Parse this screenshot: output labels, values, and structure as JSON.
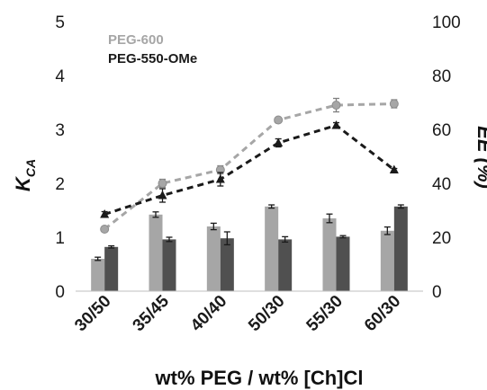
{
  "chart_data": {
    "type": "bar",
    "categories": [
      "30/50",
      "35/45",
      "40/40",
      "50/30",
      "55/30",
      "60/30"
    ],
    "xlabel": "wt% PEG / wt% [Ch]Cl",
    "ylabel_left": {
      "main": "K",
      "sub": "CA"
    },
    "ylabel_right": "EE (%)",
    "ylim_left": [
      0,
      5
    ],
    "yticks_left": [
      "0",
      "1",
      "2",
      "3",
      "4",
      "5"
    ],
    "ylim_right": [
      0,
      100
    ],
    "yticks_right": [
      "0",
      "20",
      "40",
      "60",
      "80",
      "100"
    ],
    "grid": false,
    "legend_position": "top-left",
    "bar_series": [
      {
        "name": "PEG-600",
        "axis": "left",
        "color": "#a6a6a6",
        "values": [
          0.6,
          1.42,
          1.2,
          1.57,
          1.35,
          1.12
        ],
        "errors": [
          0.03,
          0.05,
          0.06,
          0.03,
          0.08,
          0.07
        ]
      },
      {
        "name": "PEG-550-OMe",
        "axis": "left",
        "color": "#505050",
        "values": [
          0.82,
          0.96,
          0.98,
          0.96,
          1.01,
          1.57
        ],
        "errors": [
          0.02,
          0.04,
          0.12,
          0.05,
          0.02,
          0.03
        ]
      }
    ],
    "line_series": [
      {
        "name": "PEG-600",
        "axis": "right",
        "color": "#a6a6a6",
        "marker": "circle",
        "values": [
          23,
          40,
          45,
          63.5,
          69,
          69.5
        ],
        "errors": [
          0.5,
          1.5,
          1.5,
          0.5,
          2.5,
          1.5
        ]
      },
      {
        "name": "PEG-550-OMe",
        "axis": "right",
        "color": "#1a1a1a",
        "marker": "triangle",
        "values": [
          28.5,
          35.5,
          41.5,
          55,
          61.5,
          45
        ],
        "errors": [
          1,
          2.5,
          2.5,
          1.5,
          1,
          0.5
        ]
      }
    ],
    "legend": [
      {
        "label": "PEG-600",
        "color": "#a6a6a6"
      },
      {
        "label": "PEG-550-OMe",
        "color": "#1a1a1a"
      }
    ]
  }
}
